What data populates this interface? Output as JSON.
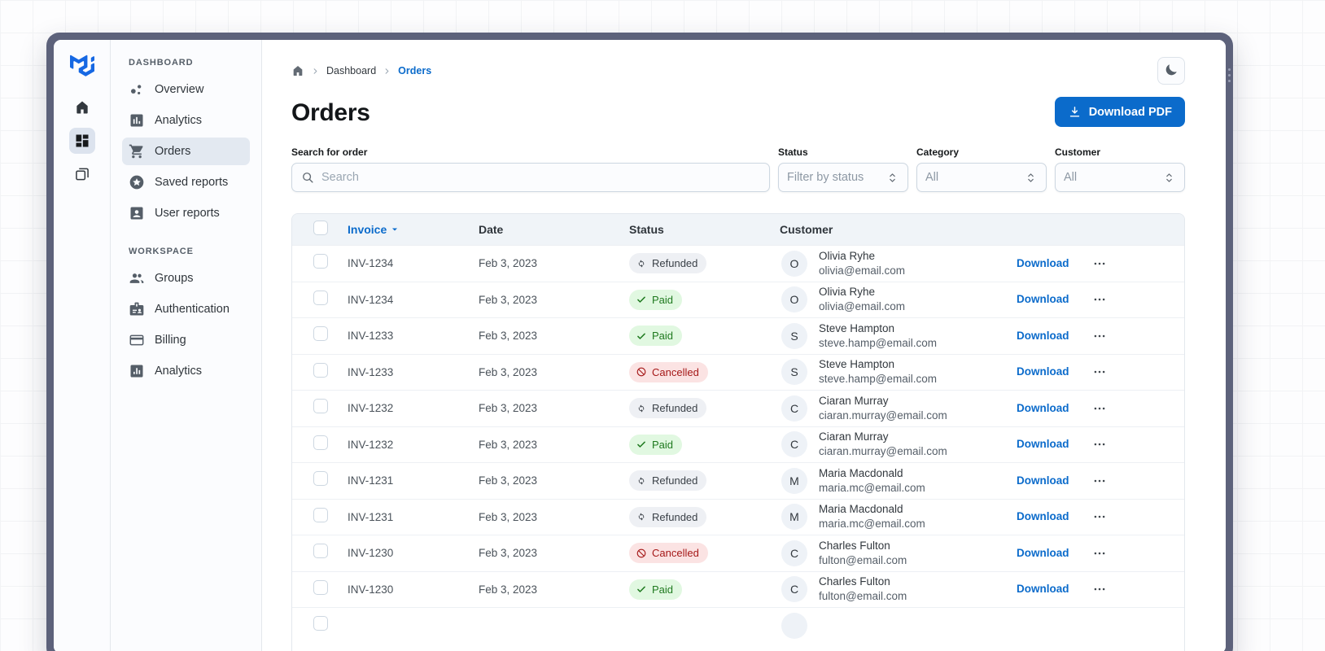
{
  "colors": {
    "accent": "#0b6bcb",
    "frame": "#5d627b",
    "table_header_bg": "#f0f4f8",
    "sidebar_bg": "#fbfcfe"
  },
  "brand": {
    "logo_icon": "mui-logo"
  },
  "rail": {
    "items": [
      {
        "icon": "home-icon",
        "selected": false
      },
      {
        "icon": "dashboard-icon",
        "selected": true
      },
      {
        "icon": "window-stack-icon",
        "selected": false
      }
    ]
  },
  "sidebar": {
    "sections": [
      {
        "label": "DASHBOARD",
        "items": [
          {
            "label": "Overview",
            "icon": "bubble-chart-icon",
            "selected": false
          },
          {
            "label": "Analytics",
            "icon": "bar-chart-icon",
            "selected": false
          },
          {
            "label": "Orders",
            "icon": "shopping-cart-icon",
            "selected": true
          },
          {
            "label": "Saved reports",
            "icon": "stars-icon",
            "selected": false
          },
          {
            "label": "User reports",
            "icon": "account-box-icon",
            "selected": false
          }
        ]
      },
      {
        "label": "WORKSPACE",
        "items": [
          {
            "label": "Groups",
            "icon": "groups-icon",
            "selected": false
          },
          {
            "label": "Authentication",
            "icon": "badge-icon",
            "selected": false
          },
          {
            "label": "Billing",
            "icon": "credit-card-icon",
            "selected": false
          },
          {
            "label": "Analytics",
            "icon": "mini-bar-chart-icon",
            "selected": false
          }
        ]
      }
    ]
  },
  "breadcrumb": {
    "home_icon": "home-icon",
    "separator_icon": "chevron-right-icon",
    "items": [
      {
        "label": "Dashboard",
        "current": false
      },
      {
        "label": "Orders",
        "current": true
      }
    ]
  },
  "page": {
    "title": "Orders",
    "download_button": {
      "label": "Download PDF",
      "icon": "download-icon"
    }
  },
  "theme_toggle": {
    "icon": "moon-icon"
  },
  "filters": {
    "search": {
      "label": "Search for order",
      "placeholder": "Search",
      "icon": "search-icon"
    },
    "selects": [
      {
        "label": "Status",
        "value": "Filter by status"
      },
      {
        "label": "Category",
        "value": "All"
      },
      {
        "label": "Customer",
        "value": "All"
      }
    ]
  },
  "table": {
    "columns": {
      "invoice": "Invoice",
      "date": "Date",
      "status": "Status",
      "customer": "Customer"
    },
    "sort_icon": "caret-down-icon",
    "download_label": "Download",
    "row_menu_icon": "ellipsis-icon",
    "rows": [
      {
        "invoice": "INV-1234",
        "date": "Feb 3, 2023",
        "status": "Refunded",
        "customer": {
          "initial": "O",
          "name": "Olivia Ryhe",
          "email": "olivia@email.com"
        }
      },
      {
        "invoice": "INV-1234",
        "date": "Feb 3, 2023",
        "status": "Paid",
        "customer": {
          "initial": "O",
          "name": "Olivia Ryhe",
          "email": "olivia@email.com"
        }
      },
      {
        "invoice": "INV-1233",
        "date": "Feb 3, 2023",
        "status": "Paid",
        "customer": {
          "initial": "S",
          "name": "Steve Hampton",
          "email": "steve.hamp@email.com"
        }
      },
      {
        "invoice": "INV-1233",
        "date": "Feb 3, 2023",
        "status": "Cancelled",
        "customer": {
          "initial": "S",
          "name": "Steve Hampton",
          "email": "steve.hamp@email.com"
        }
      },
      {
        "invoice": "INV-1232",
        "date": "Feb 3, 2023",
        "status": "Refunded",
        "customer": {
          "initial": "C",
          "name": "Ciaran Murray",
          "email": "ciaran.murray@email.com"
        }
      },
      {
        "invoice": "INV-1232",
        "date": "Feb 3, 2023",
        "status": "Paid",
        "customer": {
          "initial": "C",
          "name": "Ciaran Murray",
          "email": "ciaran.murray@email.com"
        }
      },
      {
        "invoice": "INV-1231",
        "date": "Feb 3, 2023",
        "status": "Refunded",
        "customer": {
          "initial": "M",
          "name": "Maria Macdonald",
          "email": "maria.mc@email.com"
        }
      },
      {
        "invoice": "INV-1231",
        "date": "Feb 3, 2023",
        "status": "Refunded",
        "customer": {
          "initial": "M",
          "name": "Maria Macdonald",
          "email": "maria.mc@email.com"
        }
      },
      {
        "invoice": "INV-1230",
        "date": "Feb 3, 2023",
        "status": "Cancelled",
        "customer": {
          "initial": "C",
          "name": "Charles Fulton",
          "email": "fulton@email.com"
        }
      },
      {
        "invoice": "INV-1230",
        "date": "Feb 3, 2023",
        "status": "Paid",
        "customer": {
          "initial": "C",
          "name": "Charles Fulton",
          "email": "fulton@email.com"
        }
      }
    ]
  },
  "status_styles": {
    "Refunded": {
      "bg": "#eef0f4",
      "fg": "#3a4047",
      "icon": "autorenew-icon"
    },
    "Paid": {
      "bg": "#e1f8e1",
      "fg": "#1f7a1f",
      "icon": "check-icon"
    },
    "Cancelled": {
      "bg": "#fbe3e3",
      "fg": "#a51818",
      "icon": "block-icon"
    }
  }
}
